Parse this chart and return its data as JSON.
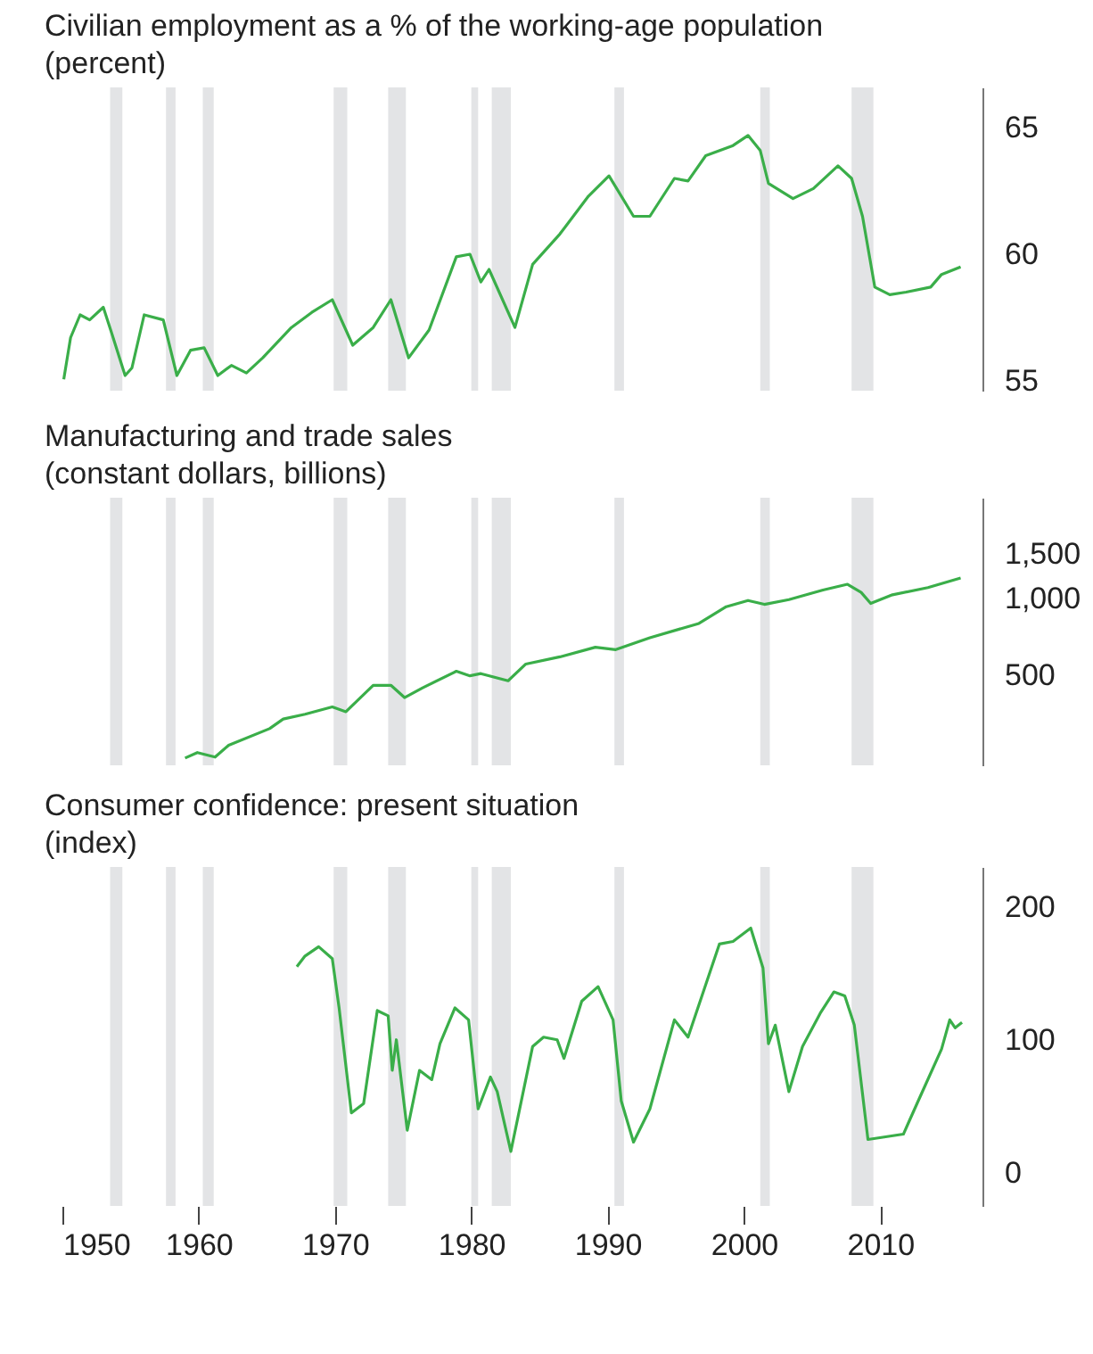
{
  "chart_data": [
    {
      "type": "line",
      "title": "Civilian employment as a % of the working-age population",
      "subtitle": "(percent)",
      "xlim": [
        1950,
        2017.5
      ],
      "ylim": [
        54.6,
        66.6
      ],
      "yticks": [
        55,
        60,
        65
      ],
      "tick_labels": "y",
      "x": [
        1950.1,
        1950.6,
        1951.3,
        1952.0,
        1953.0,
        1953.6,
        1954.6,
        1955.1,
        1956.0,
        1957.4,
        1958.4,
        1959.4,
        1960.4,
        1961.4,
        1962.4,
        1963.5,
        1964.7,
        1966.8,
        1968.3,
        1969.8,
        1971.3,
        1972.8,
        1974.1,
        1975.4,
        1976.9,
        1978.9,
        1979.9,
        1980.7,
        1981.3,
        1983.2,
        1984.5,
        1986.5,
        1988.6,
        1990.1,
        1991.9,
        1993.1,
        1994.9,
        1995.9,
        1997.2,
        1999.2,
        2000.3,
        2001.2,
        2001.8,
        2003.6,
        2005.1,
        2006.9,
        2007.9,
        2008.7,
        2009.6,
        2010.7,
        2011.9,
        2013.7,
        2014.5,
        2015.9
      ],
      "series": [
        {
          "color": "#3aae49",
          "values": [
            55.05,
            56.7,
            57.6,
            57.4,
            57.9,
            56.9,
            55.2,
            55.5,
            57.6,
            57.4,
            55.2,
            56.2,
            56.3,
            55.2,
            55.6,
            55.3,
            55.9,
            57.1,
            57.7,
            58.2,
            56.4,
            57.1,
            58.2,
            55.9,
            57.0,
            59.9,
            60.0,
            58.9,
            59.4,
            57.1,
            59.6,
            60.8,
            62.3,
            63.1,
            61.5,
            61.5,
            63.0,
            62.9,
            63.9,
            64.3,
            64.7,
            64.1,
            62.8,
            62.2,
            62.6,
            63.5,
            63.0,
            61.5,
            58.7,
            58.4,
            58.5,
            58.7,
            59.2,
            59.5
          ]
        }
      ],
      "bands": [
        {
          "axis": "x",
          "from": 1953.5,
          "to": 1954.4,
          "color": "#e3e4e6"
        },
        {
          "axis": "x",
          "from": 1957.6,
          "to": 1958.3,
          "color": "#e3e4e6"
        },
        {
          "axis": "x",
          "from": 1960.3,
          "to": 1961.1,
          "color": "#e3e4e6"
        },
        {
          "axis": "x",
          "from": 1969.9,
          "to": 1970.9,
          "color": "#e3e4e6"
        },
        {
          "axis": "x",
          "from": 1973.9,
          "to": 1975.2,
          "color": "#e3e4e6"
        },
        {
          "axis": "x",
          "from": 1980.0,
          "to": 1980.5,
          "color": "#e3e4e6"
        },
        {
          "axis": "x",
          "from": 1981.5,
          "to": 1982.9,
          "color": "#e3e4e6"
        },
        {
          "axis": "x",
          "from": 1990.5,
          "to": 1991.2,
          "color": "#e3e4e6"
        },
        {
          "axis": "x",
          "from": 2001.2,
          "to": 2001.9,
          "color": "#e3e4e6"
        },
        {
          "axis": "x",
          "from": 2007.9,
          "to": 2009.5,
          "color": "#e3e4e6"
        }
      ]
    },
    {
      "type": "line",
      "title": "Manufacturing and trade sales",
      "subtitle": "(constant dollars, billions)",
      "log": true,
      "xlim": [
        1950,
        2017.5
      ],
      "ylim": [
        220,
        2500
      ],
      "yticks": [
        {
          "value": 500,
          "label": "500"
        },
        {
          "value": 1000,
          "label": "1,000"
        },
        {
          "value": 1500,
          "label": "1,500"
        }
      ],
      "tick_labels": "y",
      "x": [
        1959.0,
        1959.9,
        1961.2,
        1962.2,
        1965.2,
        1966.2,
        1967.8,
        1969.8,
        1970.8,
        1972.8,
        1974.1,
        1975.1,
        1976.4,
        1978.9,
        1979.9,
        1980.7,
        1982.7,
        1984.0,
        1986.5,
        1989.1,
        1990.6,
        1993.1,
        1996.7,
        1998.7,
        2000.3,
        2001.5,
        2003.3,
        2005.8,
        2007.6,
        2008.6,
        2009.3,
        2010.9,
        2013.5,
        2015.9
      ],
      "series": [
        {
          "color": "#3aae49",
          "values": [
            235,
            247,
            237,
            264,
            307,
            335,
            350,
            374,
            358,
            455,
            455,
            407,
            444,
            517,
            496,
            506,
            474,
            552,
            589,
            643,
            629,
            701,
            798,
            929,
            983,
            949,
            991,
            1081,
            1139,
            1058,
            957,
            1035,
            1105,
            1205
          ]
        }
      ],
      "bands": [
        {
          "axis": "x",
          "from": 1953.5,
          "to": 1954.4,
          "color": "#e3e4e6"
        },
        {
          "axis": "x",
          "from": 1957.6,
          "to": 1958.3,
          "color": "#e3e4e6"
        },
        {
          "axis": "x",
          "from": 1960.3,
          "to": 1961.1,
          "color": "#e3e4e6"
        },
        {
          "axis": "x",
          "from": 1969.9,
          "to": 1970.9,
          "color": "#e3e4e6"
        },
        {
          "axis": "x",
          "from": 1973.9,
          "to": 1975.2,
          "color": "#e3e4e6"
        },
        {
          "axis": "x",
          "from": 1980.0,
          "to": 1980.5,
          "color": "#e3e4e6"
        },
        {
          "axis": "x",
          "from": 1981.5,
          "to": 1982.9,
          "color": "#e3e4e6"
        },
        {
          "axis": "x",
          "from": 1990.5,
          "to": 1991.2,
          "color": "#e3e4e6"
        },
        {
          "axis": "x",
          "from": 2001.2,
          "to": 2001.9,
          "color": "#e3e4e6"
        },
        {
          "axis": "x",
          "from": 2007.9,
          "to": 2009.5,
          "color": "#e3e4e6"
        }
      ]
    },
    {
      "type": "line",
      "title": "Consumer confidence: present situation",
      "subtitle": "(index)",
      "xlim": [
        1950,
        2017.5
      ],
      "xticks": [
        1950,
        1960,
        1970,
        1980,
        1990,
        2000,
        2010
      ],
      "ylim": [
        -25,
        230
      ],
      "yticks": [
        0,
        100,
        200
      ],
      "x": [
        1967.2,
        1967.8,
        1968.8,
        1969.8,
        1970.3,
        1971.2,
        1972.1,
        1973.1,
        1973.9,
        1974.2,
        1974.5,
        1975.3,
        1976.2,
        1977.1,
        1977.7,
        1978.8,
        1979.8,
        1980.5,
        1981.4,
        1981.9,
        1982.9,
        1984.5,
        1985.3,
        1986.3,
        1986.8,
        1988.1,
        1989.3,
        1990.4,
        1991.0,
        1991.9,
        1993.1,
        1994.9,
        1995.9,
        1998.2,
        1999.2,
        2000.5,
        2001.4,
        2001.8,
        2002.3,
        2003.3,
        2004.3,
        2005.6,
        2006.6,
        2007.4,
        2008.1,
        2009.1,
        2010.4,
        2011.7,
        2012.7,
        2014.5,
        2015.1,
        2015.5,
        2016.0
      ],
      "series": [
        {
          "color": "#3aae49",
          "values": [
            155,
            163,
            170,
            161,
            124,
            45,
            52,
            122,
            118,
            77,
            100,
            32,
            77,
            70,
            97,
            124,
            115,
            48,
            72,
            61,
            16,
            95,
            102,
            100,
            86,
            129,
            140,
            115,
            54,
            23,
            48,
            115,
            102,
            172,
            174,
            184,
            154,
            97,
            111,
            61,
            95,
            120,
            136,
            133,
            111,
            25,
            27,
            29,
            52,
            93,
            115,
            109,
            113
          ]
        }
      ],
      "bands": [
        {
          "axis": "x",
          "from": 1953.5,
          "to": 1954.4,
          "color": "#e3e4e6"
        },
        {
          "axis": "x",
          "from": 1957.6,
          "to": 1958.3,
          "color": "#e3e4e6"
        },
        {
          "axis": "x",
          "from": 1960.3,
          "to": 1961.1,
          "color": "#e3e4e6"
        },
        {
          "axis": "x",
          "from": 1969.9,
          "to": 1970.9,
          "color": "#e3e4e6"
        },
        {
          "axis": "x",
          "from": 1973.9,
          "to": 1975.2,
          "color": "#e3e4e6"
        },
        {
          "axis": "x",
          "from": 1980.0,
          "to": 1980.5,
          "color": "#e3e4e6"
        },
        {
          "axis": "x",
          "from": 1981.5,
          "to": 1982.9,
          "color": "#e3e4e6"
        },
        {
          "axis": "x",
          "from": 1990.5,
          "to": 1991.2,
          "color": "#e3e4e6"
        },
        {
          "axis": "x",
          "from": 2001.2,
          "to": 2001.9,
          "color": "#e3e4e6"
        },
        {
          "axis": "x",
          "from": 2007.9,
          "to": 2009.5,
          "color": "#e3e4e6"
        }
      ]
    }
  ]
}
